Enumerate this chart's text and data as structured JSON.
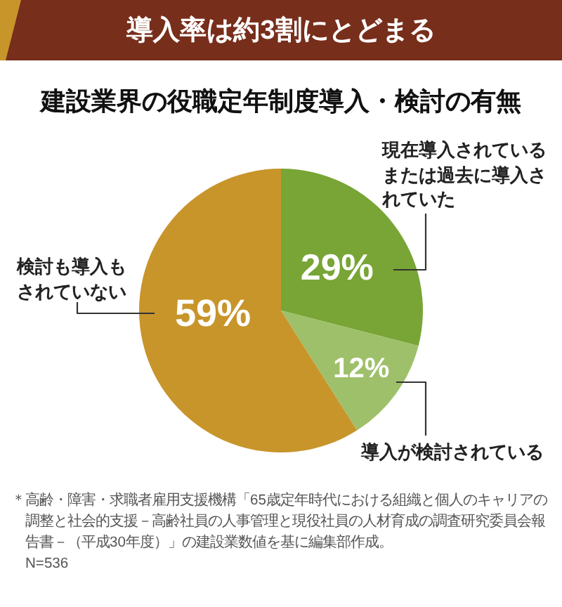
{
  "chart_data": {
    "type": "pie",
    "title": "導入率は約3割にとどまる",
    "subtitle": "建設業界の役職定年制度導入・検討の有無",
    "categories": [
      "現在導入されているまたは過去に導入されていた",
      "導入が検討されている",
      "検討も導入もされていない"
    ],
    "values": [
      29,
      12,
      59
    ],
    "colors": [
      "#78a535",
      "#9ec06a",
      "#c8952b"
    ],
    "value_labels": [
      "29%",
      "12%",
      "59%"
    ],
    "annotations": [
      "＊高齢・障害・求職者雇用支援機構「65歳定年時代における組織と個人のキャリアの調整と社会的支援－高齢社員の人事管理と現役社員の人材育成の調査研究委員会報告書－（平成30年度）」の建設業数値を基に編集部作成。",
      "N=536"
    ]
  }
}
